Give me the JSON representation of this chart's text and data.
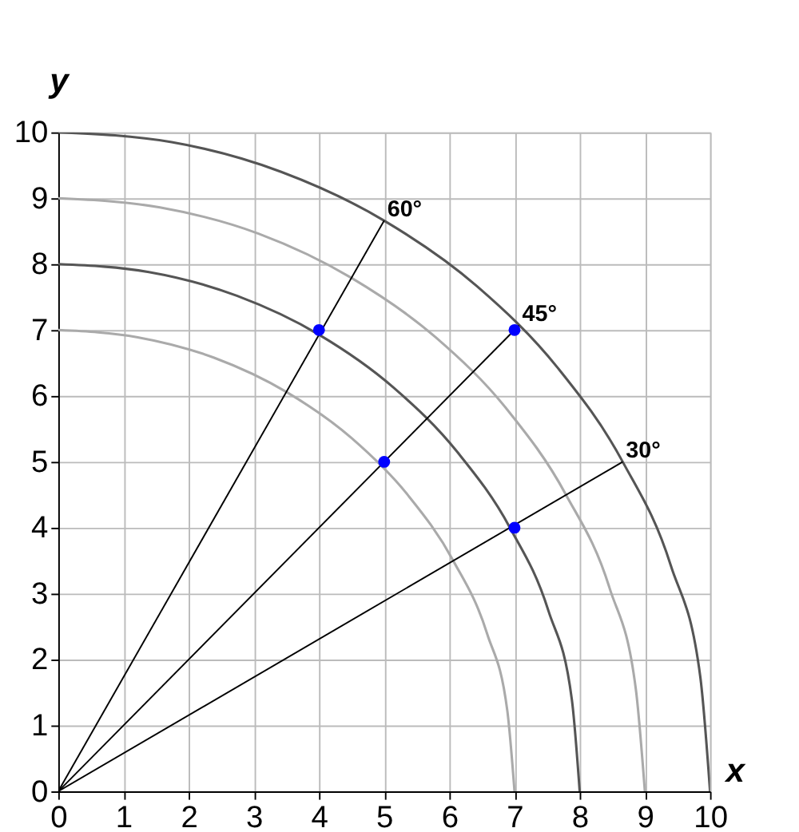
{
  "chart_data": {
    "type": "line",
    "xlabel": "x",
    "ylabel": "y",
    "xlim": [
      0,
      10
    ],
    "ylim": [
      0,
      10
    ],
    "xticks": [
      0,
      1,
      2,
      3,
      4,
      5,
      6,
      7,
      8,
      9,
      10
    ],
    "yticks": [
      0,
      1,
      2,
      3,
      4,
      5,
      6,
      7,
      8,
      9,
      10
    ],
    "grid": true,
    "line_style": "solid",
    "series": [
      {
        "color": "#aaaaaa",
        "x": [
          7,
          6.89,
          6.58,
          6.06,
          5.36,
          4.5,
          3.5,
          2.39,
          1.22,
          0
        ],
        "values": [
          0,
          1.22,
          2.39,
          3.5,
          4.5,
          5.36,
          6.06,
          6.58,
          6.89,
          7
        ]
      },
      {
        "color": "#555555",
        "x": [
          8,
          7.88,
          7.52,
          6.93,
          6.13,
          5.14,
          4,
          2.74,
          1.39,
          0
        ],
        "values": [
          0,
          1.39,
          2.74,
          4,
          5.14,
          6.13,
          6.93,
          7.52,
          7.88,
          8
        ]
      },
      {
        "color": "#aaaaaa",
        "x": [
          9,
          8.86,
          8.46,
          7.79,
          6.89,
          5.79,
          4.5,
          3.08,
          1.56,
          0
        ],
        "values": [
          0,
          1.56,
          3.08,
          4.5,
          5.79,
          6.89,
          7.79,
          8.46,
          8.86,
          9
        ]
      },
      {
        "color": "#555555",
        "x": [
          10,
          9.85,
          9.4,
          8.66,
          7.66,
          6.43,
          5,
          3.42,
          1.74,
          0
        ],
        "values": [
          0,
          1.74,
          3.42,
          5,
          6.43,
          7.66,
          8.66,
          9.4,
          9.85,
          10
        ]
      },
      {
        "name": "60°",
        "color": "#000000",
        "x": [
          0,
          5
        ],
        "values": [
          0,
          8.66
        ]
      },
      {
        "name": "45°",
        "color": "#000000",
        "x": [
          0,
          7.07
        ],
        "values": [
          0,
          7.07
        ]
      },
      {
        "name": "30°",
        "color": "#000000",
        "x": [
          0,
          8.66
        ],
        "values": [
          0,
          5
        ]
      },
      {
        "type": "scatter",
        "color": "#0000ff",
        "marker": "circle",
        "x": [
          4,
          7,
          5,
          7
        ],
        "values": [
          7,
          7,
          5,
          4
        ]
      }
    ]
  }
}
